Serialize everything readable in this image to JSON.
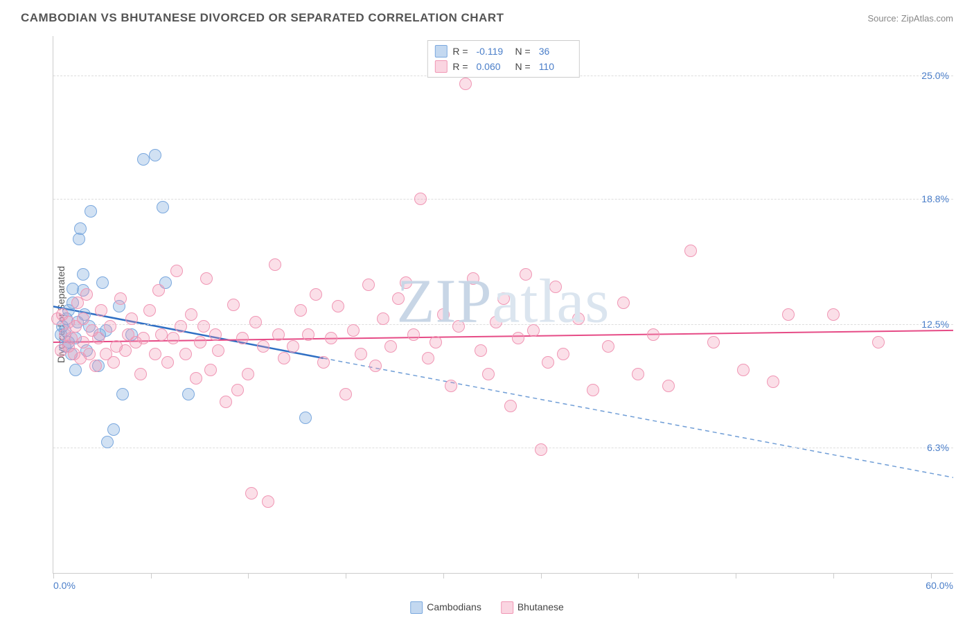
{
  "title": "CAMBODIAN VS BHUTANESE DIVORCED OR SEPARATED CORRELATION CHART",
  "source": "Source: ZipAtlas.com",
  "ylabel": "Divorced or Separated",
  "watermark": "ZIPatlas",
  "chart": {
    "type": "scatter",
    "xlim": [
      0,
      60
    ],
    "ylim": [
      0,
      27
    ],
    "x_labels": [
      {
        "v": 0,
        "t": "0.0%"
      },
      {
        "v": 60,
        "t": "60.0%"
      }
    ],
    "y_labels": [
      {
        "v": 6.3,
        "t": "6.3%"
      },
      {
        "v": 12.5,
        "t": "12.5%"
      },
      {
        "v": 18.8,
        "t": "18.8%"
      },
      {
        "v": 25.0,
        "t": "25.0%"
      }
    ],
    "x_ticks": [
      0,
      6.5,
      13,
      19.5,
      26,
      32.5,
      39,
      45.5,
      52,
      58.5
    ],
    "grid_y": [
      6.3,
      12.5,
      18.8,
      25.0
    ],
    "grid_color": "#dddddd",
    "background_color": "#ffffff",
    "series": [
      {
        "name": "Cambodians",
        "color_fill": "rgba(122,168,222,0.35)",
        "color_stroke": "#7aa8de",
        "marker_radius": 9,
        "trend": {
          "x1": 0,
          "y1": 13.4,
          "x2": 18,
          "y2": 10.8,
          "x2d": 60,
          "y2d": 4.8,
          "solid_color": "#2f6fc4",
          "dash_color": "#6f9dd6",
          "width": 2.5
        },
        "points": [
          [
            0.5,
            12.0
          ],
          [
            0.6,
            12.4
          ],
          [
            0.8,
            11.4
          ],
          [
            0.8,
            12.2
          ],
          [
            0.9,
            12.8
          ],
          [
            1.0,
            13.2
          ],
          [
            1.0,
            11.6
          ],
          [
            1.2,
            11.0
          ],
          [
            1.3,
            14.3
          ],
          [
            1.3,
            13.6
          ],
          [
            1.5,
            10.2
          ],
          [
            1.5,
            11.8
          ],
          [
            1.6,
            12.6
          ],
          [
            1.7,
            16.8
          ],
          [
            1.8,
            17.3
          ],
          [
            2.0,
            14.2
          ],
          [
            2.0,
            15.0
          ],
          [
            2.1,
            13.0
          ],
          [
            2.2,
            11.2
          ],
          [
            2.4,
            12.4
          ],
          [
            2.5,
            18.2
          ],
          [
            3.0,
            10.4
          ],
          [
            3.1,
            12.0
          ],
          [
            3.3,
            14.6
          ],
          [
            3.5,
            12.2
          ],
          [
            3.6,
            6.6
          ],
          [
            4.0,
            7.2
          ],
          [
            4.4,
            13.4
          ],
          [
            4.6,
            9.0
          ],
          [
            5.2,
            12.0
          ],
          [
            6.0,
            20.8
          ],
          [
            6.8,
            21.0
          ],
          [
            7.3,
            18.4
          ],
          [
            7.5,
            14.6
          ],
          [
            9.0,
            9.0
          ],
          [
            16.8,
            7.8
          ]
        ]
      },
      {
        "name": "Bhutanese",
        "color_fill": "rgba(242,150,180,0.30)",
        "color_stroke": "#f096b4",
        "marker_radius": 9,
        "trend": {
          "x1": 0,
          "y1": 11.6,
          "x2": 60,
          "y2": 12.2,
          "solid_color": "#e64b86",
          "width": 2.0
        },
        "points": [
          [
            0.3,
            12.8
          ],
          [
            0.5,
            11.2
          ],
          [
            0.6,
            13.0
          ],
          [
            0.8,
            12.0
          ],
          [
            1.0,
            11.4
          ],
          [
            1.0,
            12.6
          ],
          [
            1.2,
            11.8
          ],
          [
            1.4,
            11.0
          ],
          [
            1.5,
            12.4
          ],
          [
            1.6,
            13.6
          ],
          [
            1.8,
            10.8
          ],
          [
            2.0,
            11.6
          ],
          [
            2.0,
            12.8
          ],
          [
            2.2,
            14.0
          ],
          [
            2.4,
            11.0
          ],
          [
            2.6,
            12.2
          ],
          [
            2.8,
            10.4
          ],
          [
            3.0,
            11.8
          ],
          [
            3.2,
            13.2
          ],
          [
            3.5,
            11.0
          ],
          [
            3.8,
            12.4
          ],
          [
            4.0,
            10.6
          ],
          [
            4.2,
            11.4
          ],
          [
            4.5,
            13.8
          ],
          [
            4.8,
            11.2
          ],
          [
            5.0,
            12.0
          ],
          [
            5.2,
            12.8
          ],
          [
            5.5,
            11.6
          ],
          [
            5.8,
            10.0
          ],
          [
            6.0,
            11.8
          ],
          [
            6.4,
            13.2
          ],
          [
            6.8,
            11.0
          ],
          [
            7.0,
            14.2
          ],
          [
            7.2,
            12.0
          ],
          [
            7.6,
            10.6
          ],
          [
            8.0,
            11.8
          ],
          [
            8.2,
            15.2
          ],
          [
            8.5,
            12.4
          ],
          [
            8.8,
            11.0
          ],
          [
            9.2,
            13.0
          ],
          [
            9.5,
            9.8
          ],
          [
            9.8,
            11.6
          ],
          [
            10.0,
            12.4
          ],
          [
            10.2,
            14.8
          ],
          [
            10.5,
            10.2
          ],
          [
            10.8,
            12.0
          ],
          [
            11.0,
            11.2
          ],
          [
            11.5,
            8.6
          ],
          [
            12.0,
            13.5
          ],
          [
            12.3,
            9.2
          ],
          [
            12.6,
            11.8
          ],
          [
            13.0,
            10.0
          ],
          [
            13.2,
            4.0
          ],
          [
            13.5,
            12.6
          ],
          [
            14.0,
            11.4
          ],
          [
            14.3,
            3.6
          ],
          [
            14.8,
            15.5
          ],
          [
            15.0,
            12.0
          ],
          [
            15.4,
            10.8
          ],
          [
            16.0,
            11.4
          ],
          [
            16.5,
            13.2
          ],
          [
            17.0,
            12.0
          ],
          [
            17.5,
            14.0
          ],
          [
            18.0,
            10.6
          ],
          [
            18.5,
            11.8
          ],
          [
            19.0,
            13.4
          ],
          [
            19.5,
            9.0
          ],
          [
            20.0,
            12.2
          ],
          [
            20.5,
            11.0
          ],
          [
            21.0,
            14.5
          ],
          [
            21.5,
            10.4
          ],
          [
            22.0,
            12.8
          ],
          [
            22.5,
            11.4
          ],
          [
            23.0,
            13.8
          ],
          [
            23.5,
            14.6
          ],
          [
            24.0,
            12.0
          ],
          [
            24.5,
            18.8
          ],
          [
            25.0,
            10.8
          ],
          [
            25.5,
            11.6
          ],
          [
            26.0,
            13.0
          ],
          [
            26.5,
            9.4
          ],
          [
            27.0,
            12.4
          ],
          [
            27.5,
            24.6
          ],
          [
            28.0,
            14.8
          ],
          [
            28.5,
            11.2
          ],
          [
            29.0,
            10.0
          ],
          [
            29.5,
            12.6
          ],
          [
            30.0,
            13.8
          ],
          [
            30.5,
            8.4
          ],
          [
            31.0,
            11.8
          ],
          [
            31.5,
            15.0
          ],
          [
            32.0,
            12.2
          ],
          [
            32.5,
            6.2
          ],
          [
            33.0,
            10.6
          ],
          [
            33.5,
            14.4
          ],
          [
            34.0,
            11.0
          ],
          [
            35.0,
            12.8
          ],
          [
            36.0,
            9.2
          ],
          [
            37.0,
            11.4
          ],
          [
            38.0,
            13.6
          ],
          [
            39.0,
            10.0
          ],
          [
            40.0,
            12.0
          ],
          [
            41.0,
            9.4
          ],
          [
            42.5,
            16.2
          ],
          [
            44.0,
            11.6
          ],
          [
            46.0,
            10.2
          ],
          [
            48.0,
            9.6
          ],
          [
            49.0,
            13.0
          ],
          [
            52.0,
            13.0
          ],
          [
            55.0,
            11.6
          ]
        ]
      }
    ]
  },
  "legend_top": [
    {
      "sw_fill": "rgba(122,168,222,0.45)",
      "sw_stroke": "#7aa8de",
      "r_label": "R =",
      "r": "-0.119",
      "n_label": "N =",
      "n": "36"
    },
    {
      "sw_fill": "rgba(242,150,180,0.40)",
      "sw_stroke": "#f096b4",
      "r_label": "R =",
      "r": "0.060",
      "n_label": "N =",
      "n": "110"
    }
  ],
  "legend_bottom": [
    {
      "sw_fill": "rgba(122,168,222,0.45)",
      "sw_stroke": "#7aa8de",
      "label": "Cambodians"
    },
    {
      "sw_fill": "rgba(242,150,180,0.40)",
      "sw_stroke": "#f096b4",
      "label": "Bhutanese"
    }
  ]
}
